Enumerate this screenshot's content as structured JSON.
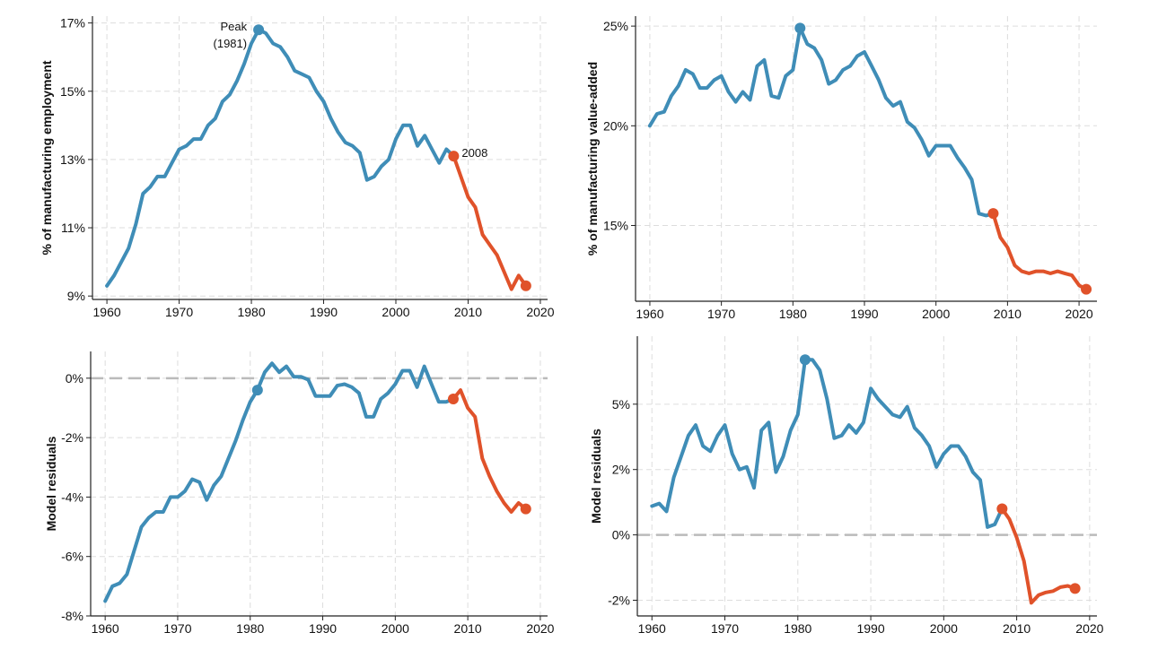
{
  "colors": {
    "pre_2008": "#3f8db7",
    "post_2008": "#e0522a",
    "grid": "#dddddd",
    "zero_line": "#bbbbbb"
  },
  "chart_data": [
    {
      "type": "line",
      "ylabel": "% of manufacturing employment",
      "xlim": [
        1958,
        2021
      ],
      "ylim": [
        8.9,
        17.2
      ],
      "x_ticks": [
        1960,
        1970,
        1980,
        1990,
        2000,
        2010,
        2020
      ],
      "x_tick_labels": [
        "1960",
        "1970",
        "1980",
        "1990",
        "2000",
        "2010",
        "2020"
      ],
      "y_ticks": [
        9,
        11,
        13,
        15,
        17
      ],
      "y_tick_labels": [
        "9%",
        "11%",
        "13%",
        "15%",
        "17%"
      ],
      "grid": true,
      "series": [
        {
          "color_key": "pre_2008",
          "x": [
            1960,
            1961,
            1962,
            1963,
            1964,
            1965,
            1966,
            1967,
            1968,
            1969,
            1970,
            1971,
            1972,
            1973,
            1974,
            1975,
            1976,
            1977,
            1978,
            1979,
            1980,
            1981,
            1982,
            1983,
            1984,
            1985,
            1986,
            1987,
            1988,
            1989,
            1990,
            1991,
            1992,
            1993,
            1994,
            1995,
            1996,
            1997,
            1998,
            1999,
            2000,
            2001,
            2002,
            2003,
            2004,
            2005,
            2006,
            2007,
            2008
          ],
          "y": [
            9.3,
            9.6,
            10.0,
            10.4,
            11.1,
            12.0,
            12.2,
            12.5,
            12.5,
            12.9,
            13.3,
            13.4,
            13.6,
            13.6,
            14.0,
            14.2,
            14.7,
            14.9,
            15.3,
            15.8,
            16.4,
            16.8,
            16.7,
            16.4,
            16.3,
            16.0,
            15.6,
            15.5,
            15.4,
            15.0,
            14.7,
            14.2,
            13.8,
            13.5,
            13.4,
            13.2,
            12.4,
            12.5,
            12.8,
            13.0,
            13.6,
            14.0,
            14.0,
            13.4,
            13.7,
            13.3,
            12.9,
            13.3,
            13.1
          ]
        },
        {
          "color_key": "post_2008",
          "x": [
            2008,
            2009,
            2010,
            2011,
            2012,
            2013,
            2014,
            2015,
            2016,
            2017,
            2018
          ],
          "y": [
            13.1,
            12.5,
            11.9,
            11.6,
            10.8,
            10.5,
            10.2,
            9.7,
            9.2,
            9.6,
            9.3
          ]
        }
      ],
      "points": [
        {
          "x": 1981,
          "y": 16.8,
          "color_key": "pre_2008"
        },
        {
          "x": 2008,
          "y": 13.1,
          "color_key": "post_2008"
        },
        {
          "x": 2018,
          "y": 9.3,
          "color_key": "post_2008"
        }
      ],
      "annotations": [
        {
          "text": "Peak",
          "x": 1981,
          "y": 16.8,
          "dx": -13,
          "dy": 1
        },
        {
          "text": "(1981)",
          "x": 1981,
          "y": 16.8,
          "dx": -13,
          "dy": 20
        },
        {
          "text": "2008",
          "x": 2008,
          "y": 13.1,
          "dx": 9,
          "dy": 1
        }
      ]
    },
    {
      "type": "line",
      "ylabel": "% of manufacturing value-added",
      "xlim": [
        1958,
        2022.5
      ],
      "ylim": [
        11.2,
        25.5
      ],
      "x_ticks": [
        1960,
        1970,
        1980,
        1990,
        2000,
        2010,
        2020
      ],
      "x_tick_labels": [
        "1960",
        "1970",
        "1980",
        "1990",
        "2000",
        "2010",
        "2020"
      ],
      "y_ticks": [
        15,
        20,
        25
      ],
      "y_tick_labels": [
        "15%",
        "20%",
        "25%"
      ],
      "grid": true,
      "series": [
        {
          "color_key": "pre_2008",
          "x": [
            1960,
            1961,
            1962,
            1963,
            1964,
            1965,
            1966,
            1967,
            1968,
            1969,
            1970,
            1971,
            1972,
            1973,
            1974,
            1975,
            1976,
            1977,
            1978,
            1979,
            1980,
            1981,
            1982,
            1983,
            1984,
            1985,
            1986,
            1987,
            1988,
            1989,
            1990,
            1991,
            1992,
            1993,
            1994,
            1995,
            1996,
            1997,
            1998,
            1999,
            2000,
            2001,
            2002,
            2003,
            2004,
            2005,
            2006,
            2007,
            2008
          ],
          "y": [
            20.0,
            20.6,
            20.7,
            21.5,
            22.0,
            22.8,
            22.6,
            21.9,
            21.9,
            22.3,
            22.5,
            21.7,
            21.2,
            21.7,
            21.3,
            23.0,
            23.3,
            21.5,
            21.4,
            22.5,
            22.8,
            24.9,
            24.1,
            23.9,
            23.3,
            22.1,
            22.3,
            22.8,
            23.0,
            23.5,
            23.7,
            23.0,
            22.3,
            21.4,
            21.0,
            21.2,
            20.2,
            19.9,
            19.3,
            18.5,
            19.0,
            19.0,
            19.0,
            18.4,
            17.9,
            17.3,
            15.6,
            15.5,
            15.6
          ]
        },
        {
          "color_key": "post_2008",
          "x": [
            2008,
            2009,
            2010,
            2011,
            2012,
            2013,
            2014,
            2015,
            2016,
            2017,
            2018,
            2019,
            2020,
            2021
          ],
          "y": [
            15.6,
            14.4,
            13.9,
            13.0,
            12.7,
            12.6,
            12.7,
            12.7,
            12.6,
            12.7,
            12.6,
            12.5,
            12.0,
            11.8
          ]
        }
      ],
      "points": [
        {
          "x": 1981,
          "y": 24.9,
          "color_key": "pre_2008"
        },
        {
          "x": 2008,
          "y": 15.6,
          "color_key": "post_2008"
        },
        {
          "x": 2021,
          "y": 11.8,
          "color_key": "post_2008"
        }
      ],
      "annotations": []
    },
    {
      "type": "line",
      "ylabel": "Model residuals",
      "xlim": [
        1958,
        2021
      ],
      "ylim": [
        -8,
        0.9
      ],
      "x_ticks": [
        1960,
        1970,
        1980,
        1990,
        2000,
        2010,
        2020
      ],
      "x_tick_labels": [
        "1960",
        "1970",
        "1980",
        "1990",
        "2000",
        "2010",
        "2020"
      ],
      "y_ticks": [
        -8,
        -6,
        -4,
        -2,
        0
      ],
      "y_tick_labels": [
        "-8%",
        "-6%",
        "-4%",
        "-2%",
        "0%"
      ],
      "grid": true,
      "zero_line": 0,
      "series": [
        {
          "color_key": "pre_2008",
          "x": [
            1960,
            1961,
            1962,
            1963,
            1964,
            1965,
            1966,
            1967,
            1968,
            1969,
            1970,
            1971,
            1972,
            1973,
            1974,
            1975,
            1976,
            1977,
            1978,
            1979,
            1980,
            1981,
            1982,
            1983,
            1984,
            1985,
            1986,
            1987,
            1988,
            1989,
            1990,
            1991,
            1992,
            1993,
            1994,
            1995,
            1996,
            1997,
            1998,
            1999,
            2000,
            2001,
            2002,
            2003,
            2004,
            2005,
            2006,
            2007,
            2008
          ],
          "y": [
            -7.5,
            -7.0,
            -6.9,
            -6.6,
            -5.8,
            -5.0,
            -4.7,
            -4.5,
            -4.5,
            -4.0,
            -4.0,
            -3.8,
            -3.4,
            -3.5,
            -4.1,
            -3.6,
            -3.3,
            -2.7,
            -2.1,
            -1.4,
            -0.8,
            -0.4,
            0.2,
            0.5,
            0.2,
            0.4,
            0.05,
            0.05,
            -0.05,
            -0.6,
            -0.6,
            -0.6,
            -0.25,
            -0.2,
            -0.3,
            -0.5,
            -1.3,
            -1.3,
            -0.7,
            -0.5,
            -0.2,
            0.25,
            0.25,
            -0.3,
            0.4,
            -0.2,
            -0.8,
            -0.8,
            -0.7
          ]
        },
        {
          "color_key": "post_2008",
          "x": [
            2008,
            2009,
            2010,
            2011,
            2012,
            2013,
            2014,
            2015,
            2016,
            2017,
            2018
          ],
          "y": [
            -0.7,
            -0.4,
            -1.0,
            -1.3,
            -2.7,
            -3.3,
            -3.8,
            -4.2,
            -4.5,
            -4.2,
            -4.4
          ]
        }
      ],
      "points": [
        {
          "x": 1981,
          "y": -0.4,
          "color_key": "pre_2008"
        },
        {
          "x": 2008,
          "y": -0.7,
          "color_key": "post_2008"
        },
        {
          "x": 2018,
          "y": -4.4,
          "color_key": "post_2008"
        }
      ],
      "annotations": []
    },
    {
      "type": "line",
      "ylabel": "Model residuals",
      "xlim": [
        1958,
        2021
      ],
      "ylim": [
        -3.1,
        7.6
      ],
      "x_ticks": [
        1960,
        1970,
        1980,
        1990,
        2000,
        2010,
        2020
      ],
      "x_tick_labels": [
        "1960",
        "1970",
        "1980",
        "1990",
        "2000",
        "2010",
        "2020"
      ],
      "y_ticks": [
        -2.5,
        0,
        2.5,
        5
      ],
      "y_tick_labels": [
        "-2%",
        "0%",
        "2%",
        "5%"
      ],
      "grid": true,
      "zero_line": 0,
      "series": [
        {
          "color_key": "pre_2008",
          "x": [
            1960,
            1961,
            1962,
            1963,
            1964,
            1965,
            1966,
            1967,
            1968,
            1969,
            1970,
            1971,
            1972,
            1973,
            1974,
            1975,
            1976,
            1977,
            1978,
            1979,
            1980,
            1981,
            1982,
            1983,
            1984,
            1985,
            1986,
            1987,
            1988,
            1989,
            1990,
            1991,
            1992,
            1993,
            1994,
            1995,
            1996,
            1997,
            1998,
            1999,
            2000,
            2001,
            2002,
            2003,
            2004,
            2005,
            2006,
            2007,
            2008
          ],
          "y": [
            1.1,
            1.2,
            0.9,
            2.2,
            3.0,
            3.8,
            4.2,
            3.4,
            3.2,
            3.8,
            4.2,
            3.1,
            2.5,
            2.6,
            1.8,
            4.0,
            4.3,
            2.4,
            3.0,
            4.0,
            4.6,
            6.7,
            6.7,
            6.3,
            5.2,
            3.7,
            3.8,
            4.2,
            3.9,
            4.3,
            5.6,
            5.2,
            4.9,
            4.6,
            4.5,
            4.9,
            4.1,
            3.8,
            3.4,
            2.6,
            3.1,
            3.4,
            3.4,
            3.0,
            2.4,
            2.1,
            0.3,
            0.4,
            1.0
          ]
        },
        {
          "color_key": "post_2008",
          "x": [
            2008,
            2009,
            2010,
            2011,
            2012,
            2013,
            2014,
            2015,
            2016,
            2017,
            2018
          ],
          "y": [
            1.0,
            0.6,
            -0.1,
            -1.0,
            -2.6,
            -2.3,
            -2.2,
            -2.15,
            -2.0,
            -1.95,
            -2.05
          ]
        }
      ],
      "points": [
        {
          "x": 1981,
          "y": 6.7,
          "color_key": "pre_2008"
        },
        {
          "x": 2008,
          "y": 1.0,
          "color_key": "post_2008"
        },
        {
          "x": 2018,
          "y": -2.05,
          "color_key": "post_2008"
        }
      ],
      "annotations": []
    }
  ]
}
